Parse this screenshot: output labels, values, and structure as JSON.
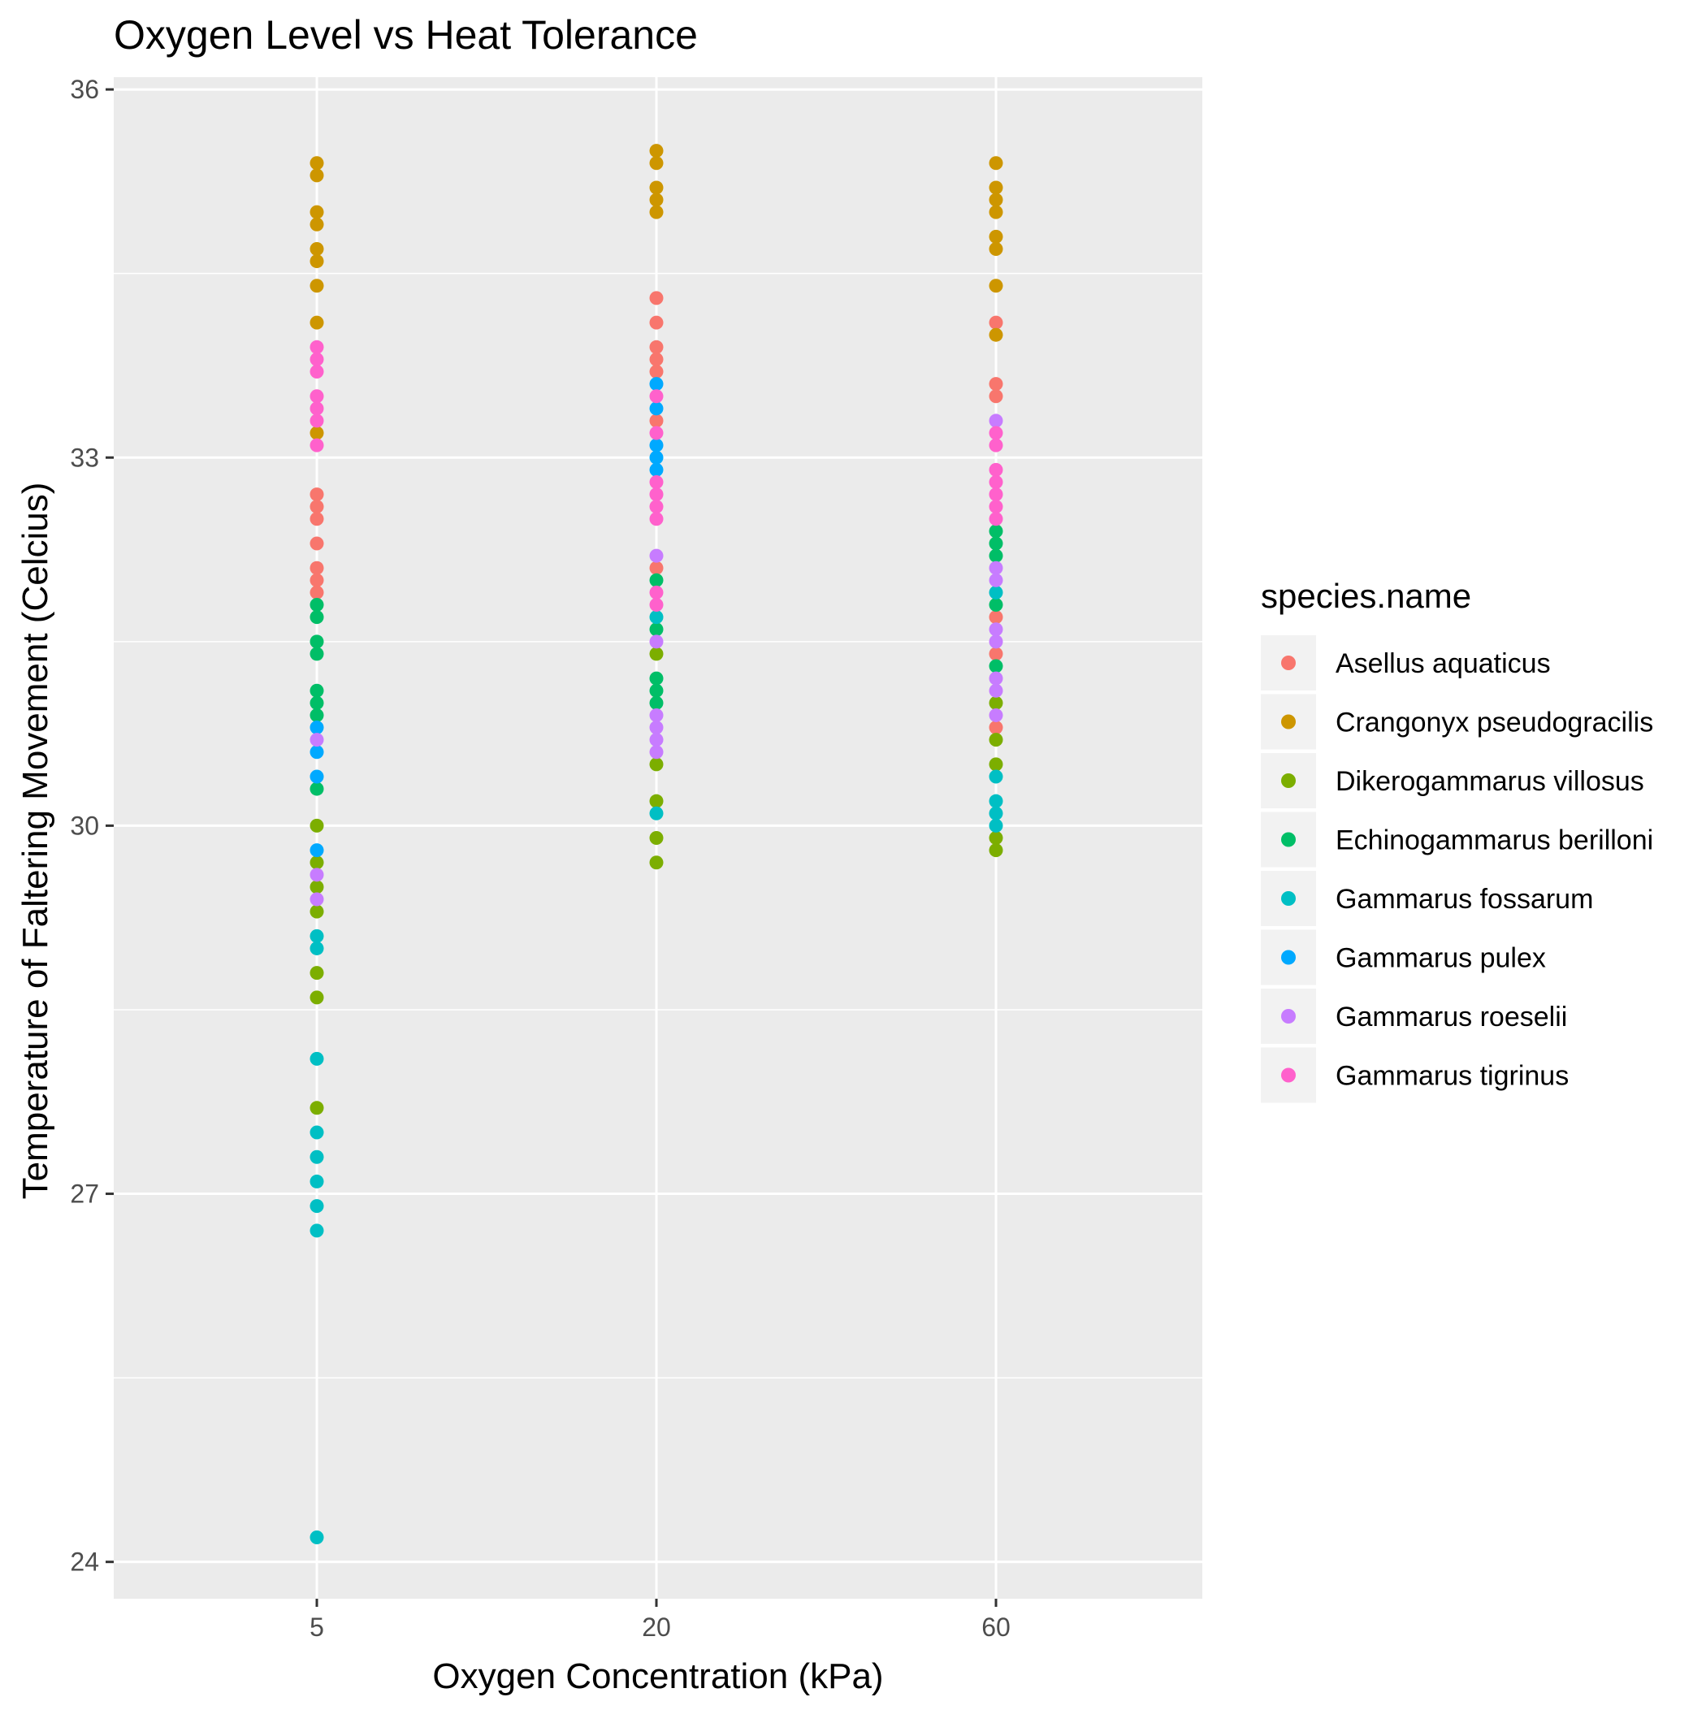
{
  "chart_data": {
    "type": "scatter",
    "title": "Oxygen Level vs Heat Tolerance",
    "xlabel": "Oxygen Concentration (kPa)",
    "ylabel": "Temperature of Faltering Movement (Celcius)",
    "x_scale": "categorical",
    "categories": [
      "5",
      "20",
      "60"
    ],
    "ylim": [
      23.7,
      36.1
    ],
    "y_ticks": [
      24,
      27,
      30,
      33,
      36
    ],
    "grid": true,
    "legend": {
      "title": "species.name",
      "position": "right"
    },
    "series": [
      {
        "name": "Asellus aquaticus",
        "color": "#F8766D",
        "points": [
          {
            "x": "5",
            "y": 32.7
          },
          {
            "x": "5",
            "y": 32.6
          },
          {
            "x": "5",
            "y": 32.5
          },
          {
            "x": "5",
            "y": 32.3
          },
          {
            "x": "5",
            "y": 32.1
          },
          {
            "x": "5",
            "y": 32.0
          },
          {
            "x": "5",
            "y": 31.9
          },
          {
            "x": "20",
            "y": 34.3
          },
          {
            "x": "20",
            "y": 34.1
          },
          {
            "x": "20",
            "y": 33.9
          },
          {
            "x": "20",
            "y": 33.8
          },
          {
            "x": "20",
            "y": 33.7
          },
          {
            "x": "20",
            "y": 33.3
          },
          {
            "x": "20",
            "y": 32.1
          },
          {
            "x": "60",
            "y": 34.1
          },
          {
            "x": "60",
            "y": 33.6
          },
          {
            "x": "60",
            "y": 33.5
          },
          {
            "x": "60",
            "y": 31.7
          },
          {
            "x": "60",
            "y": 31.4
          },
          {
            "x": "60",
            "y": 30.8
          }
        ]
      },
      {
        "name": "Crangonyx pseudogracilis",
        "color": "#CD9600",
        "points": [
          {
            "x": "5",
            "y": 35.4
          },
          {
            "x": "5",
            "y": 35.3
          },
          {
            "x": "5",
            "y": 35.0
          },
          {
            "x": "5",
            "y": 34.9
          },
          {
            "x": "5",
            "y": 34.7
          },
          {
            "x": "5",
            "y": 34.6
          },
          {
            "x": "5",
            "y": 34.4
          },
          {
            "x": "5",
            "y": 34.1
          },
          {
            "x": "5",
            "y": 33.2
          },
          {
            "x": "20",
            "y": 35.5
          },
          {
            "x": "20",
            "y": 35.4
          },
          {
            "x": "20",
            "y": 35.2
          },
          {
            "x": "20",
            "y": 35.1
          },
          {
            "x": "20",
            "y": 35.0
          },
          {
            "x": "60",
            "y": 35.4
          },
          {
            "x": "60",
            "y": 35.2
          },
          {
            "x": "60",
            "y": 35.1
          },
          {
            "x": "60",
            "y": 35.0
          },
          {
            "x": "60",
            "y": 34.8
          },
          {
            "x": "60",
            "y": 34.7
          },
          {
            "x": "60",
            "y": 34.4
          },
          {
            "x": "60",
            "y": 34.0
          }
        ]
      },
      {
        "name": "Dikerogammarus villosus",
        "color": "#7CAE00",
        "points": [
          {
            "x": "5",
            "y": 30.0
          },
          {
            "x": "5",
            "y": 29.7
          },
          {
            "x": "5",
            "y": 29.5
          },
          {
            "x": "5",
            "y": 29.3
          },
          {
            "x": "5",
            "y": 28.8
          },
          {
            "x": "5",
            "y": 28.6
          },
          {
            "x": "5",
            "y": 27.7
          },
          {
            "x": "20",
            "y": 31.4
          },
          {
            "x": "20",
            "y": 30.5
          },
          {
            "x": "20",
            "y": 30.2
          },
          {
            "x": "20",
            "y": 29.9
          },
          {
            "x": "20",
            "y": 29.7
          },
          {
            "x": "60",
            "y": 31.0
          },
          {
            "x": "60",
            "y": 30.7
          },
          {
            "x": "60",
            "y": 30.5
          },
          {
            "x": "60",
            "y": 29.9
          },
          {
            "x": "60",
            "y": 29.8
          }
        ]
      },
      {
        "name": "Echinogammarus berilloni",
        "color": "#00BE67",
        "points": [
          {
            "x": "5",
            "y": 31.8
          },
          {
            "x": "5",
            "y": 31.7
          },
          {
            "x": "5",
            "y": 31.5
          },
          {
            "x": "5",
            "y": 31.4
          },
          {
            "x": "5",
            "y": 31.1
          },
          {
            "x": "5",
            "y": 31.0
          },
          {
            "x": "5",
            "y": 30.9
          },
          {
            "x": "5",
            "y": 30.3
          },
          {
            "x": "20",
            "y": 32.0
          },
          {
            "x": "20",
            "y": 31.6
          },
          {
            "x": "20",
            "y": 31.2
          },
          {
            "x": "20",
            "y": 31.1
          },
          {
            "x": "20",
            "y": 31.0
          },
          {
            "x": "60",
            "y": 32.4
          },
          {
            "x": "60",
            "y": 32.3
          },
          {
            "x": "60",
            "y": 32.2
          },
          {
            "x": "60",
            "y": 31.8
          },
          {
            "x": "60",
            "y": 31.3
          }
        ]
      },
      {
        "name": "Gammarus fossarum",
        "color": "#00BFC4",
        "points": [
          {
            "x": "5",
            "y": 29.1
          },
          {
            "x": "5",
            "y": 29.0
          },
          {
            "x": "5",
            "y": 28.1
          },
          {
            "x": "5",
            "y": 27.5
          },
          {
            "x": "5",
            "y": 27.3
          },
          {
            "x": "5",
            "y": 27.1
          },
          {
            "x": "5",
            "y": 26.9
          },
          {
            "x": "5",
            "y": 26.7
          },
          {
            "x": "5",
            "y": 24.2
          },
          {
            "x": "20",
            "y": 31.7
          },
          {
            "x": "20",
            "y": 30.1
          },
          {
            "x": "60",
            "y": 31.9
          },
          {
            "x": "60",
            "y": 30.4
          },
          {
            "x": "60",
            "y": 30.2
          },
          {
            "x": "60",
            "y": 30.1
          },
          {
            "x": "60",
            "y": 30.0
          }
        ]
      },
      {
        "name": "Gammarus pulex",
        "color": "#00A9FF",
        "points": [
          {
            "x": "5",
            "y": 30.8
          },
          {
            "x": "5",
            "y": 30.6
          },
          {
            "x": "5",
            "y": 30.4
          },
          {
            "x": "5",
            "y": 29.8
          },
          {
            "x": "20",
            "y": 33.6
          },
          {
            "x": "20",
            "y": 33.4
          },
          {
            "x": "20",
            "y": 33.1
          },
          {
            "x": "20",
            "y": 33.0
          },
          {
            "x": "20",
            "y": 32.9
          }
        ]
      },
      {
        "name": "Gammarus roeselii",
        "color": "#C77CFF",
        "points": [
          {
            "x": "5",
            "y": 30.7
          },
          {
            "x": "5",
            "y": 29.6
          },
          {
            "x": "5",
            "y": 29.4
          },
          {
            "x": "20",
            "y": 32.2
          },
          {
            "x": "20",
            "y": 31.5
          },
          {
            "x": "20",
            "y": 30.9
          },
          {
            "x": "20",
            "y": 30.8
          },
          {
            "x": "20",
            "y": 30.7
          },
          {
            "x": "20",
            "y": 30.6
          },
          {
            "x": "60",
            "y": 33.3
          },
          {
            "x": "60",
            "y": 32.1
          },
          {
            "x": "60",
            "y": 32.0
          },
          {
            "x": "60",
            "y": 31.6
          },
          {
            "x": "60",
            "y": 31.5
          },
          {
            "x": "60",
            "y": 31.2
          },
          {
            "x": "60",
            "y": 31.1
          },
          {
            "x": "60",
            "y": 30.9
          }
        ]
      },
      {
        "name": "Gammarus tigrinus",
        "color": "#FF61CC",
        "points": [
          {
            "x": "5",
            "y": 33.9
          },
          {
            "x": "5",
            "y": 33.8
          },
          {
            "x": "5",
            "y": 33.7
          },
          {
            "x": "5",
            "y": 33.5
          },
          {
            "x": "5",
            "y": 33.4
          },
          {
            "x": "5",
            "y": 33.3
          },
          {
            "x": "5",
            "y": 33.1
          },
          {
            "x": "20",
            "y": 33.5
          },
          {
            "x": "20",
            "y": 33.2
          },
          {
            "x": "20",
            "y": 32.8
          },
          {
            "x": "20",
            "y": 32.7
          },
          {
            "x": "20",
            "y": 32.6
          },
          {
            "x": "20",
            "y": 32.5
          },
          {
            "x": "20",
            "y": 31.9
          },
          {
            "x": "20",
            "y": 31.8
          },
          {
            "x": "60",
            "y": 33.2
          },
          {
            "x": "60",
            "y": 33.1
          },
          {
            "x": "60",
            "y": 32.9
          },
          {
            "x": "60",
            "y": 32.8
          },
          {
            "x": "60",
            "y": 32.7
          },
          {
            "x": "60",
            "y": 32.6
          },
          {
            "x": "60",
            "y": 32.5
          }
        ]
      }
    ]
  }
}
